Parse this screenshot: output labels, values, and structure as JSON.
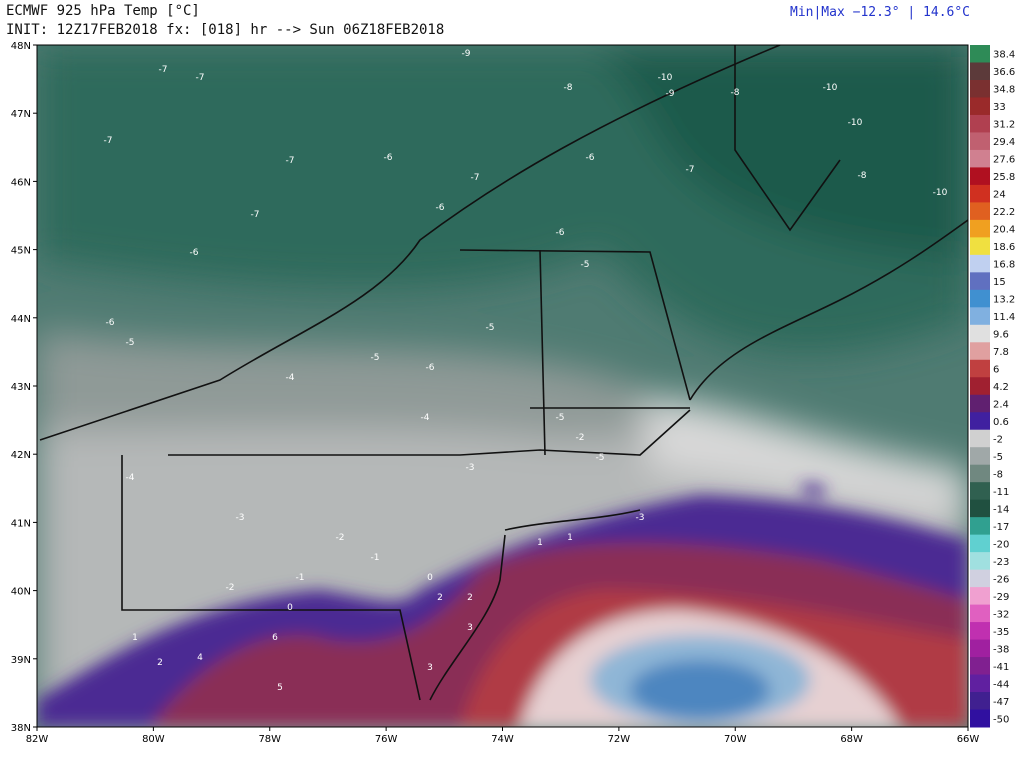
{
  "header": {
    "title": "ECMWF 925 hPa Temp [°C]",
    "init": "INIT: 12Z17FEB2018 fx: [018] hr --> Sun 06Z18FEB2018",
    "minmax": "Min|Max −12.3° | 14.6°C"
  },
  "map": {
    "lat_labels": [
      "48N",
      "47N",
      "46N",
      "45N",
      "44N",
      "43N",
      "42N",
      "41N",
      "40N",
      "39N",
      "38N"
    ],
    "lon_labels": [
      "82W",
      "80W",
      "78W",
      "76W",
      "74W",
      "72W",
      "70W",
      "68W",
      "66W"
    ],
    "point_labels": [
      "-9",
      "-7",
      "-7",
      "-7",
      "-10",
      "-9",
      "-8",
      "-10",
      "-10",
      "-7",
      "-6",
      "-7",
      "-6",
      "-8",
      "-7",
      "-6",
      "-6",
      "-5",
      "-10",
      "-7",
      "-6",
      "-6",
      "-5",
      "-5",
      "-6",
      "-8",
      "-5",
      "-4",
      "-5",
      "-5",
      "-4",
      "-3",
      "-2",
      "-4",
      "-3",
      "-2",
      "-1",
      "0",
      "1",
      "-3",
      "-2",
      "-1",
      "1",
      "2",
      "2",
      "3",
      "4",
      "5",
      "6",
      "1",
      "2",
      "3",
      "0"
    ]
  },
  "colorbar": {
    "labels": [
      38.4,
      36.6,
      34.8,
      33,
      31.2,
      29.4,
      27.6,
      25.8,
      24,
      22.2,
      20.4,
      18.6,
      16.8,
      15,
      13.2,
      11.4,
      9.6,
      7.8,
      6,
      4.2,
      2.4,
      0.6,
      -2,
      -5,
      -8,
      -11,
      -14,
      -17,
      -20,
      -23,
      -26,
      -29,
      -32,
      -35,
      -38,
      -41,
      -44,
      -47,
      -50
    ]
  }
}
